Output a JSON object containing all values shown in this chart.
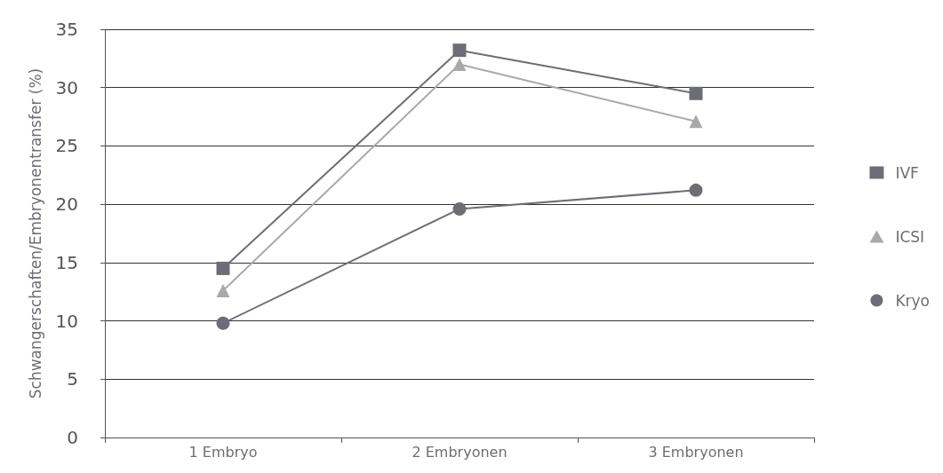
{
  "chart_data": {
    "type": "line",
    "ylabel": "Schwangerschaften/Embryonentransfer (%)",
    "categories": [
      "1 Embryo",
      "2 Embryonen",
      "3 Embryonen"
    ],
    "series": [
      {
        "name": "IVF",
        "color": "#6d6e75",
        "marker": "square",
        "values": [
          14.5,
          33.2,
          29.5
        ]
      },
      {
        "name": "ICSI",
        "color": "#a9a9ab",
        "marker": "triangle",
        "values": [
          12.6,
          32.0,
          27.1
        ]
      },
      {
        "name": "Kryo",
        "color": "#6d6e75",
        "marker": "circle",
        "values": [
          9.8,
          19.6,
          21.2
        ]
      }
    ],
    "ylim": [
      0,
      35
    ],
    "yticks": [
      0,
      5,
      10,
      15,
      20,
      25,
      30,
      35
    ],
    "grid": "y",
    "legend": "right",
    "line_style": "solid"
  }
}
